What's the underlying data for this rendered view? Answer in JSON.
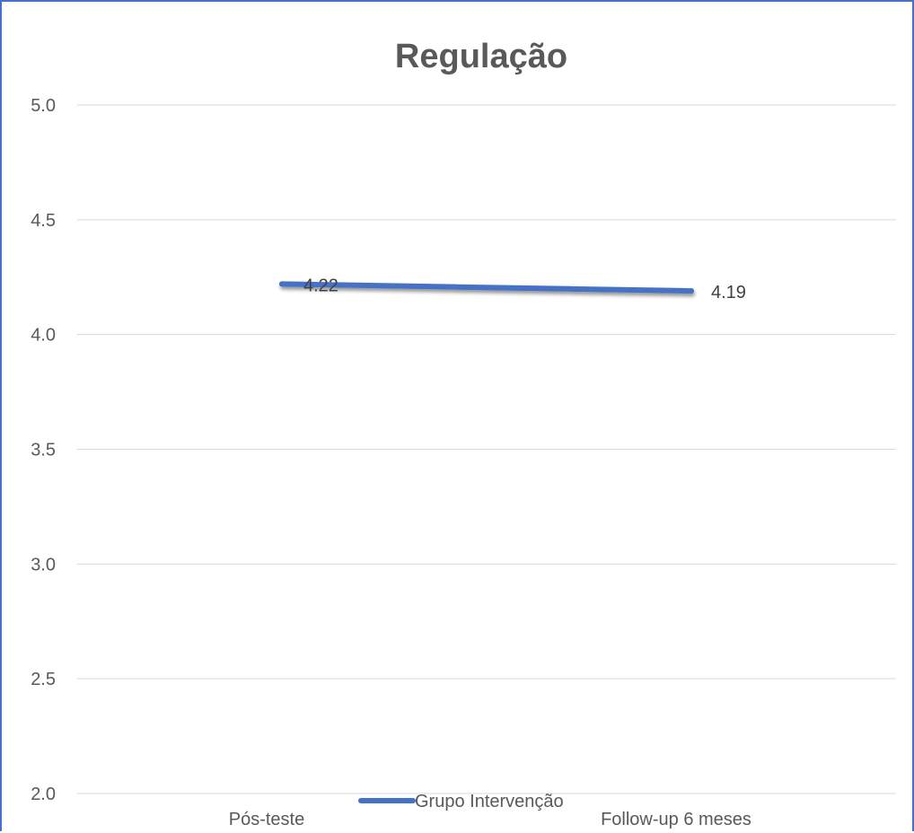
{
  "chart_data": {
    "type": "line",
    "title": "Regulação",
    "xlabel": "",
    "ylabel": "",
    "categories": [
      "Pós-teste",
      "Follow-up 6 meses"
    ],
    "series": [
      {
        "name": "Grupo Intervenção",
        "values": [
          4.22,
          4.19
        ],
        "data_labels": [
          "4.22",
          "4.19"
        ],
        "color": "#4472C4"
      }
    ],
    "ylim": [
      2.0,
      5.0
    ],
    "yticks": [
      "2.0",
      "2.5",
      "3.0",
      "3.5",
      "4.0",
      "4.5",
      "5.0"
    ],
    "grid": true,
    "legend_position": "bottom"
  }
}
